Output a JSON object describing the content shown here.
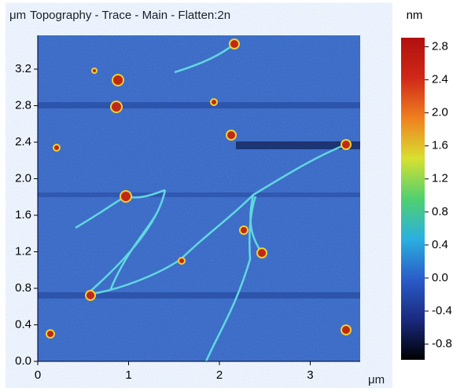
{
  "chart_data": {
    "type": "heatmap",
    "title": "Topography - Trace - Main - Flatten:2n",
    "y_unit": "μm",
    "x_unit": "μm",
    "colorbar_unit": "nm",
    "xlim": [
      0,
      3.55
    ],
    "xticks": [
      0,
      1,
      2,
      3
    ],
    "ylim": [
      0,
      3.57
    ],
    "yticks": [
      {
        "value": 0,
        "label": "0.0"
      },
      0.4,
      0.8,
      1.2,
      1.6,
      {
        "value": 2,
        "label": "2.0"
      },
      2.4,
      2.8,
      3.2
    ],
    "clim": [
      -0.99,
      2.91
    ],
    "cticks": [
      2.8,
      2.4,
      {
        "value": 2,
        "label": "2.0"
      },
      1.6,
      1.2,
      0.8,
      0.4,
      {
        "value": 0,
        "label": "0.0"
      },
      -0.4,
      -0.8
    ],
    "colormap": [
      "#000000",
      "#1a2a80",
      "#2a5cc8",
      "#2ab0e0",
      "#50d070",
      "#d8e030",
      "#f08020",
      "#d02818",
      "#b01010"
    ]
  }
}
